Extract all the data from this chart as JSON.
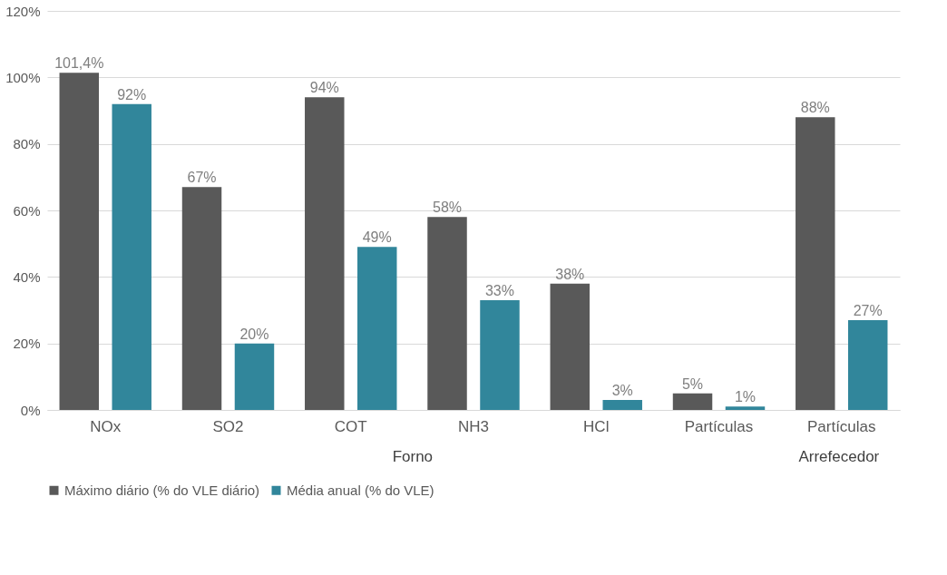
{
  "chart_data": {
    "type": "bar",
    "categories": [
      "NOx",
      "SO2",
      "COT",
      "NH3",
      "HCl",
      "Partículas",
      "Partículas"
    ],
    "series": [
      {
        "name": "Máximo diário (% do VLE diário)",
        "color": "#595959",
        "values": [
          101.4,
          67,
          94,
          58,
          38,
          5,
          88
        ],
        "value_labels": [
          "101,4%",
          "67%",
          "94%",
          "58%",
          "38%",
          "5%",
          "88%"
        ]
      },
      {
        "name": "Média anual (% do VLE)",
        "color": "#31869b",
        "values": [
          92,
          20,
          49,
          33,
          3,
          1,
          27
        ],
        "value_labels": [
          "92%",
          "20%",
          "49%",
          "33%",
          "3%",
          "1%",
          "27%"
        ]
      }
    ],
    "ylim": [
      0,
      120
    ],
    "yticks": [
      {
        "value": 0,
        "label": "0%"
      },
      {
        "value": 20,
        "label": "20%"
      },
      {
        "value": 40,
        "label": "40%"
      },
      {
        "value": 60,
        "label": "60%"
      },
      {
        "value": 80,
        "label": "80%"
      },
      {
        "value": 100,
        "label": "100%"
      },
      {
        "value": 120,
        "label": "120%"
      }
    ],
    "grid": "y",
    "legend": "bottom",
    "annotations": [
      "Forno",
      "Arrefecedor"
    ]
  }
}
